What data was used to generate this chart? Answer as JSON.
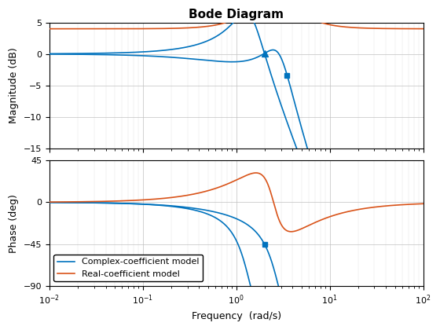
{
  "title": "Bode Diagram",
  "xlabel": "Frequency  (rad/s)",
  "ylabel_mag": "Magnitude (dB)",
  "ylabel_phase": "Phase (deg)",
  "freq_range": [
    0.01,
    100
  ],
  "mag_ylim": [
    -15,
    5
  ],
  "phase_ylim": [
    -90,
    45
  ],
  "mag_yticks": [
    -15,
    -10,
    -5,
    0,
    5
  ],
  "phase_yticks": [
    -90,
    -45,
    0,
    45
  ],
  "blue_color": "#0072BD",
  "orange_color": "#D95319",
  "legend_labels": [
    "Complex-coefficient model",
    "Real-coefficient model"
  ],
  "linewidth": 1.2,
  "title_fontsize": 11,
  "label_fontsize": 9,
  "tick_fontsize": 8,
  "legend_fontsize": 8,
  "fig_width": 5.6,
  "fig_height": 4.2,
  "dpi": 100
}
